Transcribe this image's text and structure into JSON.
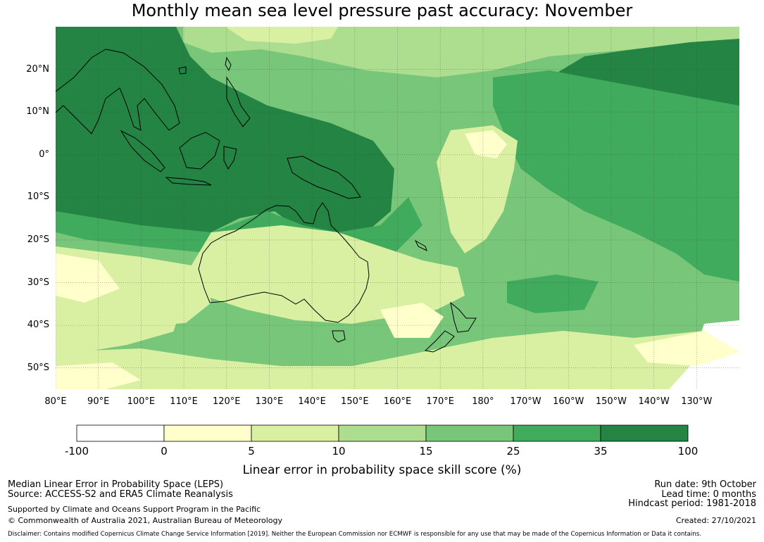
{
  "title": "Monthly mean sea level pressure past accuracy: November",
  "map": {
    "lat_range": [
      -55,
      30
    ],
    "lon_range": [
      80,
      240
    ],
    "lat_labels": [
      {
        "lat": 20,
        "text": "20°N"
      },
      {
        "lat": 10,
        "text": "10°N"
      },
      {
        "lat": 0,
        "text": "0°"
      },
      {
        "lat": -10,
        "text": "10°S"
      },
      {
        "lat": -20,
        "text": "20°S"
      },
      {
        "lat": -30,
        "text": "30°S"
      },
      {
        "lat": -40,
        "text": "40°S"
      },
      {
        "lat": -50,
        "text": "50°S"
      }
    ],
    "lon_labels": [
      {
        "lon": 80,
        "text": "80°E"
      },
      {
        "lon": 90,
        "text": "90°E"
      },
      {
        "lon": 100,
        "text": "100°E"
      },
      {
        "lon": 110,
        "text": "110°E"
      },
      {
        "lon": 120,
        "text": "120°E"
      },
      {
        "lon": 130,
        "text": "130°E"
      },
      {
        "lon": 140,
        "text": "140°E"
      },
      {
        "lon": 150,
        "text": "150°E"
      },
      {
        "lon": 160,
        "text": "160°E"
      },
      {
        "lon": 170,
        "text": "170°E"
      },
      {
        "lon": 180,
        "text": "180°"
      },
      {
        "lon": 190,
        "text": "170°W"
      },
      {
        "lon": 200,
        "text": "160°W"
      },
      {
        "lon": 210,
        "text": "150°W"
      },
      {
        "lon": 220,
        "text": "140°W"
      },
      {
        "lon": 230,
        "text": "130°W"
      }
    ]
  },
  "colorbar": {
    "bins": [
      {
        "from": -100,
        "to": 0,
        "color": "#ffffff"
      },
      {
        "from": 0,
        "to": 5,
        "color": "#ffffcc"
      },
      {
        "from": 5,
        "to": 10,
        "color": "#d9f0a3"
      },
      {
        "from": 10,
        "to": 15,
        "color": "#addd8e"
      },
      {
        "from": 15,
        "to": 25,
        "color": "#78c679"
      },
      {
        "from": 25,
        "to": 35,
        "color": "#41ab5d"
      },
      {
        "from": 35,
        "to": 100,
        "color": "#238443"
      }
    ],
    "tick_labels": [
      "-100",
      "0",
      "5",
      "10",
      "15",
      "25",
      "35",
      "100"
    ],
    "label": "Linear error in probability space skill score (%)"
  },
  "footer": {
    "left_line1": "Median Linear Error in Probability Space (LEPS)",
    "left_line2": "Source: ACCESS-S2 and ERA5 Climate Reanalysis",
    "left_line3": "Supported by Climate and Oceans Support Program in the Pacific",
    "left_line4": "© Commonwealth of Australia 2021, Australian Bureau of Meteorology",
    "right_line1": "Run date: 9th October",
    "right_line2": "Lead time: 0 months",
    "right_line3": "Hindcast period: 1981-2018",
    "right_line4": "Created: 27/10/2021",
    "disclaimer": "Disclaimer: Contains modified Copernicus Climate Change Service Information [2019]. Neither the European Commission nor ECMWF is responsible for any use that may be made of the Copernicus Information or Data it contains."
  }
}
